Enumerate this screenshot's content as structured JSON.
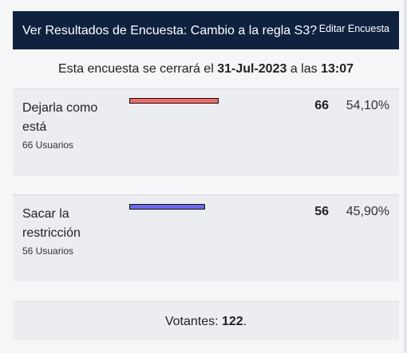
{
  "header": {
    "title": "Ver Resultados de Encuesta: Cambio a la regla S3?",
    "edit_label": "Editar Encuesta"
  },
  "closing": {
    "prefix": "Esta encuesta se cerrará el",
    "date": "31-Jul-2023",
    "middle": "a las",
    "time": "13:07"
  },
  "options": [
    {
      "label": "Dejarla como está",
      "users": "66 Usuarios",
      "votes": "66",
      "percent": "54,10%",
      "bar_color": "#f06a6a",
      "share": 0.541
    },
    {
      "label": "Sacar la restricción",
      "users": "56 Usuarios",
      "votes": "56",
      "percent": "45,90%",
      "bar_color": "#6a6af0",
      "share": 0.459
    }
  ],
  "footer": {
    "label": "Votantes:",
    "total": "122",
    "suffix": "."
  }
}
